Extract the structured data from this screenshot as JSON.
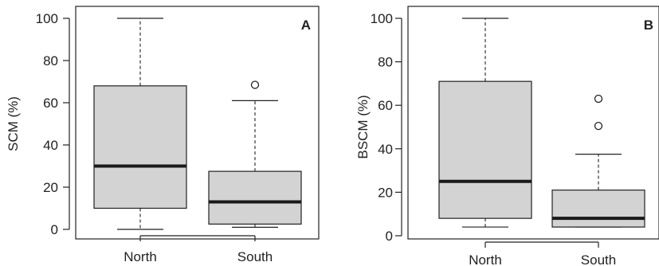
{
  "chart_data": [
    {
      "type": "box",
      "panel_label": "A",
      "ylabel": "SCM (%)",
      "xlabel": "",
      "ylim": [
        0,
        100
      ],
      "yticks": [
        0,
        20,
        40,
        60,
        80,
        100
      ],
      "categories": [
        "North",
        "South"
      ],
      "boxes": [
        {
          "category": "North",
          "whisker_low": 0,
          "q1": 10,
          "median": 30,
          "q3": 68,
          "whisker_high": 100,
          "outliers": []
        },
        {
          "category": "South",
          "whisker_low": 1,
          "q1": 2.5,
          "median": 13,
          "q3": 27.5,
          "whisker_high": 61,
          "outliers": [
            68.5
          ]
        }
      ],
      "fill_color": "#d3d3d3",
      "median_color": "#1a1a1a"
    },
    {
      "type": "box",
      "panel_label": "B",
      "ylabel": "BSCM (%)",
      "xlabel": "",
      "ylim": [
        0,
        100
      ],
      "yticks": [
        0,
        20,
        40,
        60,
        80,
        100
      ],
      "categories": [
        "North",
        "South"
      ],
      "boxes": [
        {
          "category": "North",
          "whisker_low": 4,
          "q1": 8,
          "median": 25,
          "q3": 71,
          "whisker_high": 100,
          "outliers": []
        },
        {
          "category": "South",
          "whisker_low": 4,
          "q1": 4,
          "median": 8,
          "q3": 21,
          "whisker_high": 37.5,
          "outliers": [
            50.5,
            63
          ]
        }
      ],
      "fill_color": "#d3d3d3",
      "median_color": "#1a1a1a"
    }
  ]
}
